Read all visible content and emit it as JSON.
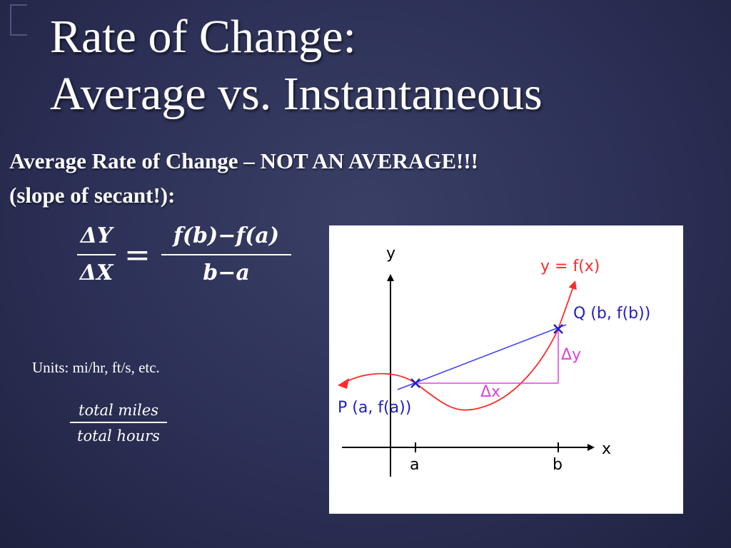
{
  "title": {
    "line1": "Rate of Change:",
    "line2": "Average vs. Instantaneous"
  },
  "subtitle": {
    "line1": "Average Rate of Change – NOT AN AVERAGE!!!",
    "line2": "(slope of secant!):"
  },
  "formula": {
    "lhs_num": "ΔY",
    "lhs_den": "ΔX",
    "equals": "=",
    "rhs_num": "f(b)−f(a)",
    "rhs_den": "b−a"
  },
  "units": {
    "text": "Units:  mi/hr, ft/s, etc.",
    "numerator": "total miles",
    "denominator": "total hours"
  },
  "graph": {
    "y_axis": "y",
    "x_axis": "x",
    "curve_label": "y = f(x)",
    "point_q": "Q (b, f(b))",
    "point_p": "P (a, f(a))",
    "delta_y": "Δy",
    "delta_x": "Δx",
    "tick_a": "a",
    "tick_b": "b",
    "colors": {
      "curve": "#ff2a2a",
      "secant": "#3b3bff",
      "deltas": "#e040e0",
      "axes": "#000000",
      "points": "#2020c0"
    }
  }
}
